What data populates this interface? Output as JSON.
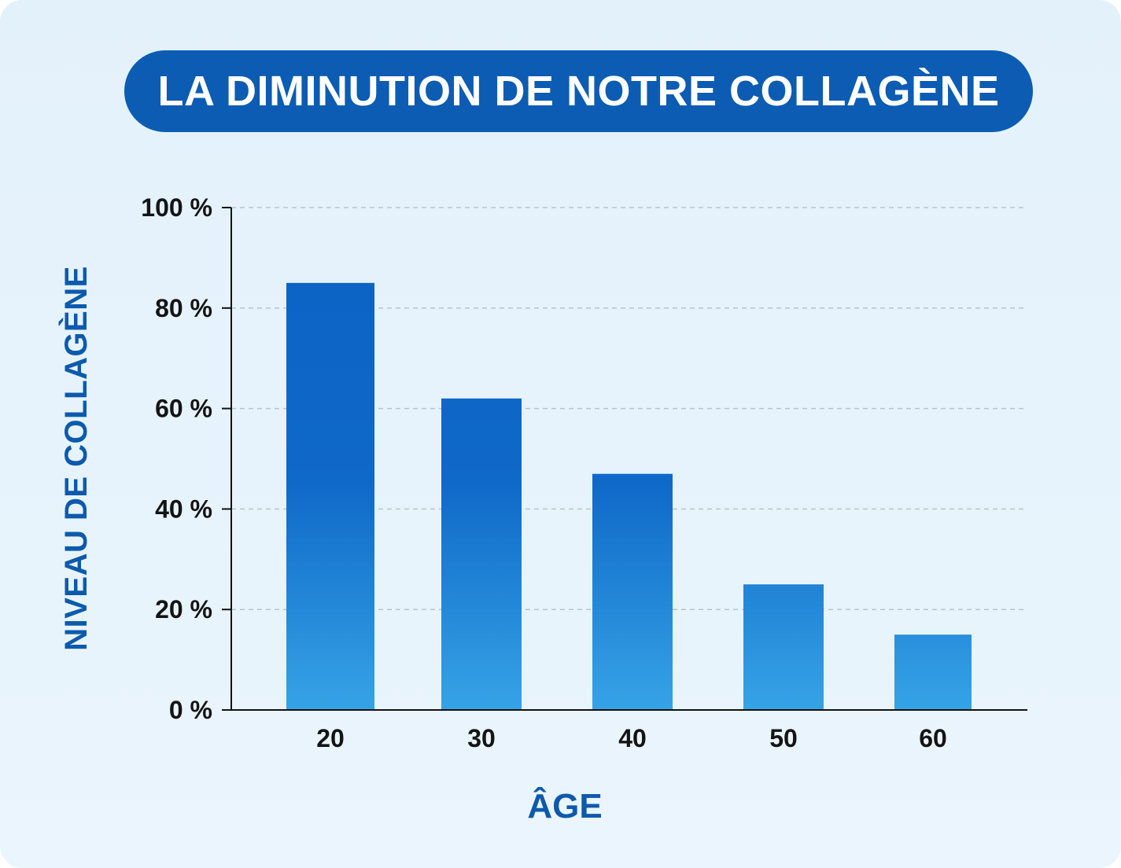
{
  "chart_data": {
    "type": "bar",
    "title": "LA DIMINUTION DE NOTRE COLLAGÈNE",
    "xlabel": "ÂGE",
    "ylabel": "NIVEAU DE COLLAGÈNE",
    "categories": [
      "20",
      "30",
      "40",
      "50",
      "60"
    ],
    "values": [
      85,
      62,
      47,
      25,
      15
    ],
    "ylim": [
      0,
      100
    ],
    "yticks": [
      0,
      20,
      40,
      60,
      80,
      100
    ],
    "ytick_labels": [
      "0 %",
      "20 %",
      "40 %",
      "60 %",
      "80 %",
      "100 %"
    ],
    "grid": true,
    "legend": "none",
    "colors": {
      "bar_top": "#0b62c4",
      "bar_bottom": "#36a3e6",
      "title_bg": "#0c5cb3",
      "axis_label": "#0d5aad"
    }
  }
}
